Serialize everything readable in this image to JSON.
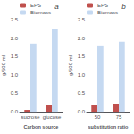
{
  "chart_data": [
    {
      "type": "bar",
      "annotations": [
        "a"
      ],
      "categories": [
        "sucrose",
        "glucose"
      ],
      "series": [
        {
          "name": "EPS",
          "color": "#c0504d",
          "values": [
            0.05,
            0.18
          ]
        },
        {
          "name": "Biomass",
          "color": "#c5d9f1",
          "values": [
            1.85,
            2.25
          ]
        }
      ],
      "xlabel": "Carbon source",
      "ylabel": "g/500 ml",
      "ylim": [
        0,
        2.5
      ],
      "yticks": [
        {
          "value": 0,
          "label": "0.0"
        },
        0.5,
        {
          "value": 1.0,
          "label": "1.0"
        },
        1.5,
        {
          "value": 2.0,
          "label": "2.0"
        },
        2.5
      ],
      "grid": false,
      "legend": "upper left"
    },
    {
      "type": "bar",
      "annotations": [
        "b"
      ],
      "categories": [
        "50",
        "75"
      ],
      "series": [
        {
          "name": "EPS",
          "color": "#c0504d",
          "values": [
            0.18,
            0.22
          ]
        },
        {
          "name": "Biomass",
          "color": "#c5d9f1",
          "values": [
            1.8,
            1.9
          ]
        }
      ],
      "xlabel": "substitution ratio",
      "ylabel": "g/500 ml",
      "ylim": [
        0,
        2.5
      ],
      "yticks": [
        {
          "value": 0,
          "label": "0.0"
        },
        0.5,
        {
          "value": 1.0,
          "label": "1.0"
        },
        1.5,
        {
          "value": 2.0,
          "label": "2.0"
        },
        2.5
      ],
      "grid": false,
      "legend": "upper left"
    }
  ]
}
